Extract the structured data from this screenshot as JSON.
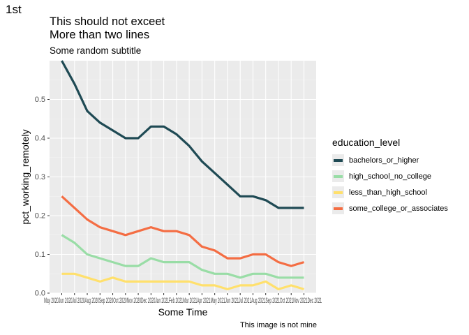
{
  "tag": "1st",
  "chart_data": {
    "type": "line",
    "title": "This should not exceet\nMore than two lines",
    "subtitle": "Some random subtitle",
    "caption": "This image is not mine",
    "xlabel": "Some Time",
    "ylabel": "pct_working_remotely",
    "ylim": [
      0,
      0.6
    ],
    "y_ticks": [
      0,
      0.1,
      0.2,
      0.3,
      0.4,
      0.5
    ],
    "y_tick_labels": [
      "0.0",
      "0.1",
      "0.2",
      "0.3",
      "0.4",
      "0.5"
    ],
    "x_tick_text": "May 2020Jun 2020Jul 2020Aug 2020Sep 2020Oct 2020Nov 2020Dec 2020Jan 2021Feb 2021Mar 2021Apr 2021May 2021Jun 2021Jul 2021Aug 2021Sep 2021Oct 2021Nov 2021Dec 2021",
    "x": [
      "May 2020",
      "Jun 2020",
      "Jul 2020",
      "Aug 2020",
      "Sep 2020",
      "Oct 2020",
      "Nov 2020",
      "Dec 2020",
      "Jan 2021",
      "Feb 2021",
      "Mar 2021",
      "Apr 2021",
      "May 2021",
      "Jun 2021",
      "Jul 2021",
      "Aug 2021",
      "Sep 2021",
      "Oct 2021",
      "Nov 2021",
      "Dec 2021"
    ],
    "legend_title": "education_level",
    "legend_position": "right",
    "grid": true,
    "series": [
      {
        "name": "bachelors_or_higher",
        "color": "#1f4a54",
        "values": [
          0.6,
          0.54,
          0.47,
          0.44,
          0.42,
          0.4,
          0.4,
          0.43,
          0.43,
          0.41,
          0.38,
          0.34,
          0.31,
          0.28,
          0.25,
          0.25,
          0.24,
          0.22,
          0.22,
          0.22
        ]
      },
      {
        "name": "high_school_no_college",
        "color": "#99dda6",
        "values": [
          0.15,
          0.13,
          0.1,
          0.09,
          0.08,
          0.07,
          0.07,
          0.09,
          0.08,
          0.08,
          0.08,
          0.06,
          0.05,
          0.05,
          0.04,
          0.05,
          0.05,
          0.04,
          0.04,
          0.04
        ]
      },
      {
        "name": "less_than_high_school",
        "color": "#ffe06c",
        "values": [
          0.05,
          0.05,
          0.04,
          0.03,
          0.04,
          0.03,
          0.03,
          0.03,
          0.03,
          0.03,
          0.03,
          0.02,
          0.02,
          0.01,
          0.02,
          0.02,
          0.03,
          0.01,
          0.02,
          0.01
        ]
      },
      {
        "name": "some_college_or_associates",
        "color": "#f46d43",
        "values": [
          0.25,
          0.22,
          0.19,
          0.17,
          0.16,
          0.15,
          0.16,
          0.17,
          0.16,
          0.16,
          0.15,
          0.12,
          0.11,
          0.09,
          0.09,
          0.1,
          0.1,
          0.08,
          0.07,
          0.08
        ]
      }
    ]
  }
}
